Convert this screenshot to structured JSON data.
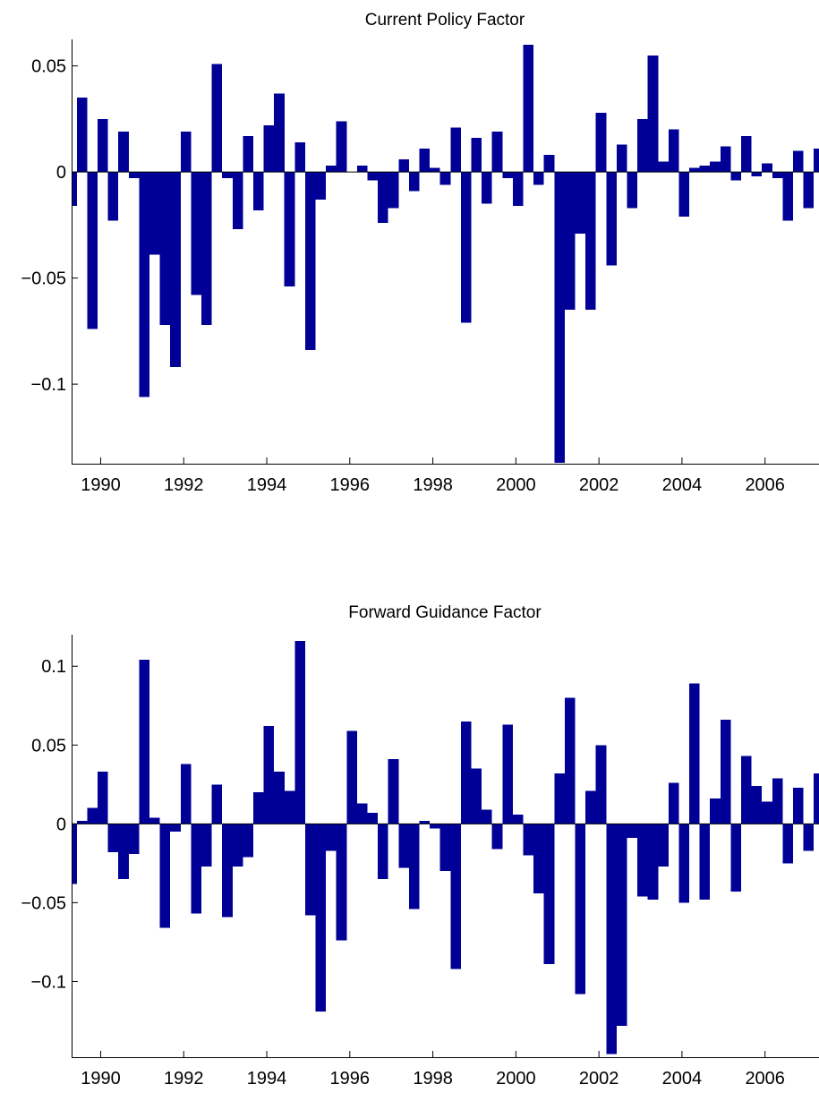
{
  "chart_data": [
    {
      "type": "bar",
      "title": "Current Policy Factor",
      "bar_color": "#000096",
      "xlim": [
        1989.3,
        2007.3
      ],
      "ylim": [
        -0.1375,
        0.0625
      ],
      "yticks": [
        -0.1,
        -0.05,
        0,
        0.05
      ],
      "yticklabels": [
        "−0.1",
        "−0.05",
        "0",
        "0.05"
      ],
      "xticks": [
        1990,
        1992,
        1994,
        1996,
        1998,
        2000,
        2002,
        2004,
        2006
      ],
      "xticklabels": [
        "1990",
        "1992",
        "1994",
        "1996",
        "1998",
        "2000",
        "2002",
        "2004",
        "2006"
      ],
      "values": [
        -0.016,
        0.035,
        -0.074,
        0.025,
        -0.023,
        0.019,
        -0.003,
        -0.106,
        -0.039,
        -0.072,
        -0.092,
        0.019,
        -0.058,
        -0.072,
        0.051,
        -0.003,
        -0.027,
        0.017,
        -0.018,
        0.022,
        0.037,
        -0.054,
        0.014,
        -0.084,
        -0.013,
        0.003,
        0.024,
        0.0,
        0.003,
        -0.004,
        -0.024,
        -0.017,
        0.006,
        -0.009,
        0.011,
        0.002,
        -0.006,
        0.021,
        -0.071,
        0.016,
        -0.015,
        0.019,
        -0.003,
        -0.016,
        0.06,
        -0.006,
        0.008,
        -0.137,
        -0.065,
        -0.029,
        -0.065,
        0.028,
        -0.044,
        0.013,
        -0.017,
        0.025,
        0.055,
        0.005,
        0.02,
        -0.021,
        0.002,
        0.003,
        0.005,
        0.012,
        -0.004,
        0.017,
        -0.002,
        0.004,
        -0.003,
        -0.023,
        0.01,
        -0.017,
        0.011
      ]
    },
    {
      "type": "bar",
      "title": "Forward Guidance Factor",
      "bar_color": "#000096",
      "xlim": [
        1989.3,
        2007.3
      ],
      "ylim": [
        -0.148,
        0.12
      ],
      "yticks": [
        -0.1,
        -0.05,
        0,
        0.05,
        0.1
      ],
      "yticklabels": [
        "−0.1",
        "−0.05",
        "0",
        "0.05",
        "0.1"
      ],
      "xticks": [
        1990,
        1992,
        1994,
        1996,
        1998,
        2000,
        2002,
        2004,
        2006
      ],
      "xticklabels": [
        "1990",
        "1992",
        "1994",
        "1996",
        "1998",
        "2000",
        "2002",
        "2004",
        "2006"
      ],
      "values": [
        -0.038,
        0.002,
        0.01,
        0.033,
        -0.018,
        -0.035,
        -0.019,
        0.104,
        0.004,
        -0.066,
        -0.005,
        0.038,
        -0.057,
        -0.027,
        0.025,
        -0.059,
        -0.027,
        -0.021,
        0.02,
        0.062,
        0.033,
        0.021,
        0.116,
        -0.058,
        -0.119,
        -0.017,
        -0.074,
        0.059,
        0.013,
        0.007,
        -0.035,
        0.041,
        -0.028,
        -0.054,
        0.002,
        -0.003,
        -0.03,
        -0.092,
        0.065,
        0.035,
        0.009,
        -0.016,
        0.063,
        0.006,
        -0.02,
        -0.044,
        -0.089,
        0.032,
        0.08,
        -0.108,
        0.021,
        0.05,
        -0.146,
        -0.128,
        -0.009,
        -0.046,
        -0.048,
        -0.027,
        0.026,
        -0.05,
        0.089,
        -0.048,
        0.016,
        0.066,
        -0.043,
        0.043,
        0.024,
        0.014,
        0.029,
        -0.025,
        0.023,
        -0.017,
        0.032
      ]
    }
  ]
}
